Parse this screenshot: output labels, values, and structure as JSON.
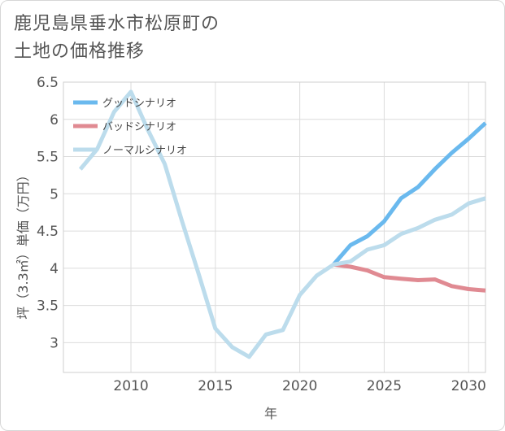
{
  "title": "鹿児島県垂水市松原町の\n土地の価格推移",
  "chart_data": {
    "type": "line",
    "xlabel": "年",
    "ylabel": "坪（3.3㎡）単価（万円）",
    "xlim": [
      2006,
      2031
    ],
    "ylim": [
      2.6,
      6.5
    ],
    "x_ticks": [
      2010,
      2015,
      2020,
      2025,
      2030
    ],
    "y_ticks": [
      3,
      3.5,
      4,
      4.5,
      5,
      5.5,
      6,
      6.5
    ],
    "y_tick_labels": [
      "3",
      "3.5",
      "4",
      "4.5",
      "5",
      "5.5",
      "6",
      "6.5"
    ],
    "grid": true,
    "legend_position": "top-left",
    "series": [
      {
        "name": "グッドシナリオ",
        "color": "#6ab9ee",
        "x": [
          2022,
          2023,
          2024,
          2025,
          2026,
          2027,
          2028,
          2029,
          2030,
          2031
        ],
        "values": [
          4.05,
          4.31,
          4.43,
          4.63,
          4.94,
          5.09,
          5.33,
          5.55,
          5.74,
          5.95
        ]
      },
      {
        "name": "バッドシナリオ",
        "color": "#e08a92",
        "x": [
          2022,
          2023,
          2024,
          2025,
          2026,
          2027,
          2028,
          2029,
          2030,
          2031
        ],
        "values": [
          4.05,
          4.02,
          3.97,
          3.88,
          3.86,
          3.84,
          3.85,
          3.76,
          3.72,
          3.7
        ]
      },
      {
        "name": "ノーマルシナリオ",
        "color": "#bcdcec",
        "x": [
          2007,
          2008,
          2009,
          2010,
          2011,
          2012,
          2013,
          2014,
          2015,
          2016,
          2017,
          2018,
          2019,
          2020,
          2021,
          2022,
          2023,
          2024,
          2025,
          2026,
          2027,
          2028,
          2029,
          2030,
          2031
        ],
        "values": [
          5.33,
          5.6,
          6.1,
          6.37,
          5.86,
          5.4,
          4.65,
          3.93,
          3.19,
          2.94,
          2.81,
          3.11,
          3.17,
          3.64,
          3.9,
          4.05,
          4.09,
          4.25,
          4.31,
          4.46,
          4.54,
          4.65,
          4.72,
          4.87,
          4.94
        ]
      }
    ]
  }
}
